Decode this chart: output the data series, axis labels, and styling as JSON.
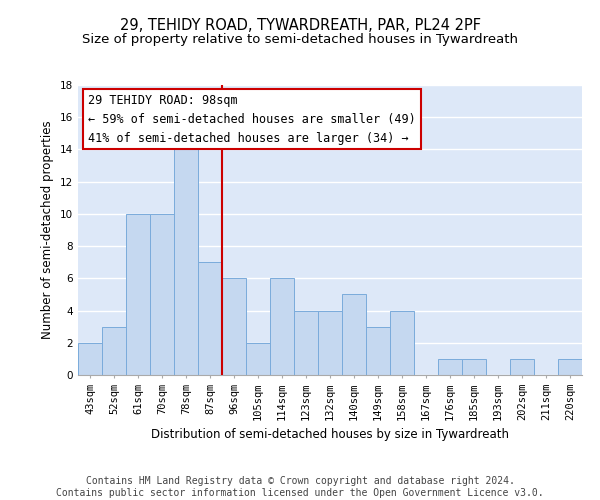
{
  "title": "29, TEHIDY ROAD, TYWARDREATH, PAR, PL24 2PF",
  "subtitle": "Size of property relative to semi-detached houses in Tywardreath",
  "xlabel": "Distribution of semi-detached houses by size in Tywardreath",
  "ylabel": "Number of semi-detached properties",
  "categories": [
    "43sqm",
    "52sqm",
    "61sqm",
    "70sqm",
    "78sqm",
    "87sqm",
    "96sqm",
    "105sqm",
    "114sqm",
    "123sqm",
    "132sqm",
    "140sqm",
    "149sqm",
    "158sqm",
    "167sqm",
    "176sqm",
    "185sqm",
    "193sqm",
    "202sqm",
    "211sqm",
    "220sqm"
  ],
  "values": [
    2,
    3,
    10,
    10,
    14,
    7,
    6,
    2,
    6,
    4,
    4,
    5,
    3,
    4,
    0,
    1,
    1,
    0,
    1,
    0,
    1
  ],
  "bar_color": "#c5d8f0",
  "bar_edge_color": "#7aabdb",
  "vline_x_index": 6,
  "vline_color": "#cc0000",
  "annotation_line1": "29 TEHIDY ROAD: 98sqm",
  "annotation_line2": "← 59% of semi-detached houses are smaller (49)",
  "annotation_line3": "41% of semi-detached houses are larger (34) →",
  "annotation_box_color": "#cc0000",
  "ylim": [
    0,
    18
  ],
  "yticks": [
    0,
    2,
    4,
    6,
    8,
    10,
    12,
    14,
    16,
    18
  ],
  "bg_color": "#dde8f8",
  "footer_text": "Contains HM Land Registry data © Crown copyright and database right 2024.\nContains public sector information licensed under the Open Government Licence v3.0.",
  "title_fontsize": 10.5,
  "subtitle_fontsize": 9.5,
  "label_fontsize": 8.5,
  "tick_fontsize": 7.5,
  "annotation_fontsize": 8.5,
  "footer_fontsize": 7
}
